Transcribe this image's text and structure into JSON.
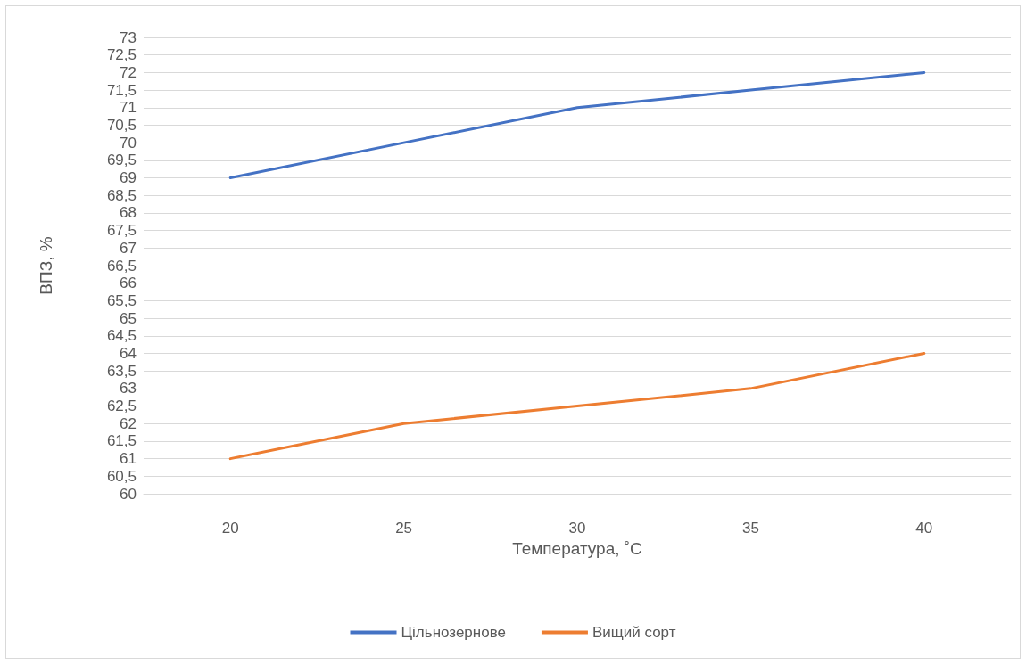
{
  "chart_data": {
    "type": "line",
    "xlabel": "Температура, ˚С",
    "ylabel": "ВПЗ, %",
    "categories": [
      "20",
      "25",
      "30",
      "35",
      "40"
    ],
    "series": [
      {
        "name": "Цільнозернове",
        "color": "#4472c4",
        "values": [
          69,
          70,
          71,
          71.5,
          72
        ]
      },
      {
        "name": "Вищий сорт",
        "color": "#ed7d31",
        "values": [
          61,
          62,
          62.5,
          63,
          64
        ]
      }
    ],
    "ylim": [
      60,
      73
    ],
    "yticks": [
      60,
      {
        "value": 60.5,
        "label": "60,5"
      },
      61,
      {
        "value": 61.5,
        "label": "61,5"
      },
      62,
      {
        "value": 62.5,
        "label": "62,5"
      },
      63,
      {
        "value": 63.5,
        "label": "63,5"
      },
      64,
      {
        "value": 64.5,
        "label": "64,5"
      },
      65,
      {
        "value": 65.5,
        "label": "65,5"
      },
      66,
      {
        "value": 66.5,
        "label": "66,5"
      },
      67,
      {
        "value": 67.5,
        "label": "67,5"
      },
      68,
      {
        "value": 68.5,
        "label": "68,5"
      },
      69,
      {
        "value": 69.5,
        "label": "69,5"
      },
      70,
      {
        "value": 70.5,
        "label": "70,5"
      },
      71,
      {
        "value": 71.5,
        "label": "71,5"
      },
      72,
      {
        "value": 72.5,
        "label": "72,5"
      },
      73
    ],
    "grid": "y",
    "legend": "bottom",
    "marker": "none",
    "line_style": "solid"
  }
}
